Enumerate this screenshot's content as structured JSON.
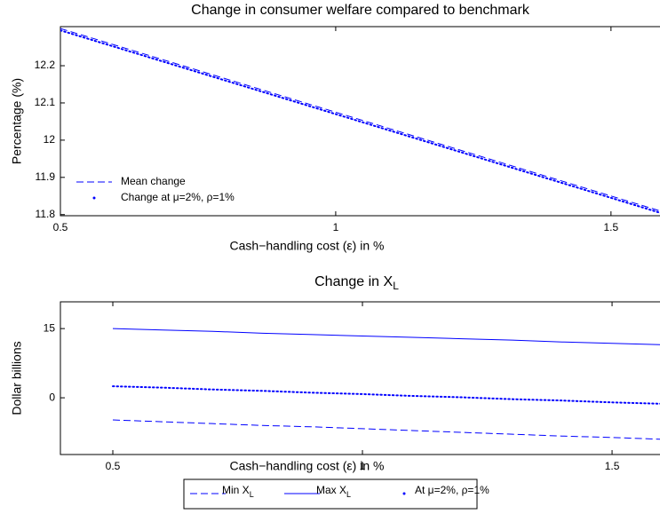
{
  "chart_data": [
    {
      "type": "line",
      "title": "Change in consumer welfare compared to benchmark",
      "xlabel": "Cash−handling cost (ε) in %",
      "ylabel": "Percentage (%)",
      "x": [
        0.5,
        0.6,
        0.7,
        0.8,
        0.9,
        1.0,
        1.1,
        1.2,
        1.3,
        1.4,
        1.5,
        1.6
      ],
      "series": [
        {
          "name": "Mean change",
          "color": "#0000ff",
          "style": "dashed",
          "values": [
            12.3,
            12.255,
            12.21,
            12.165,
            12.12,
            12.075,
            12.03,
            11.985,
            11.94,
            11.895,
            11.85,
            11.805
          ]
        },
        {
          "name": "Change at μ=2%, ρ=1%",
          "color": "#0000ff",
          "style": "dotted",
          "values": [
            12.295,
            12.25,
            12.205,
            12.16,
            12.115,
            12.07,
            12.025,
            11.98,
            11.935,
            11.89,
            11.845,
            11.8
          ]
        }
      ],
      "xlim": [
        0.5,
        1.589
      ],
      "xticks": [
        0.5,
        1,
        1.5
      ],
      "ylim": [
        11.797,
        12.305
      ],
      "yticks": [
        11.8,
        11.9,
        12,
        12.1,
        12.2
      ],
      "legend": "lower left"
    },
    {
      "type": "line",
      "title": {
        "text": "Change in X",
        "subscript": "L"
      },
      "xlabel": "Cash−handling cost (ε) in %",
      "ylabel": "Dollar billions",
      "x": [
        0.5,
        0.6,
        0.7,
        0.8,
        0.9,
        1.0,
        1.1,
        1.2,
        1.3,
        1.4,
        1.5,
        1.6
      ],
      "series": [
        {
          "name": "Min X",
          "subscript": "L",
          "color": "#0000ff",
          "style": "dashed",
          "values": [
            -4.8,
            -5.2,
            -5.6,
            -6.0,
            -6.3,
            -6.7,
            -7.1,
            -7.5,
            -7.9,
            -8.3,
            -8.6,
            -9.0
          ]
        },
        {
          "name": "Max X",
          "subscript": "L",
          "color": "#0000ff",
          "style": "solid",
          "values": [
            15.0,
            14.7,
            14.4,
            14.0,
            13.7,
            13.4,
            13.1,
            12.8,
            12.5,
            12.1,
            11.8,
            11.5
          ]
        },
        {
          "name": "At μ=2%, ρ=1%",
          "color": "#0000ff",
          "style": "dotted",
          "values": [
            2.5,
            2.2,
            1.8,
            1.5,
            1.1,
            0.8,
            0.4,
            0.1,
            -0.3,
            -0.6,
            -1.0,
            -1.3
          ]
        }
      ],
      "xlim": [
        0.395,
        1.596
      ],
      "xticks": [
        0.5,
        1,
        1.5
      ],
      "ylim": [
        -12.3,
        20.8
      ],
      "yticks": [
        0,
        15
      ],
      "legend": "outside bottom"
    }
  ]
}
